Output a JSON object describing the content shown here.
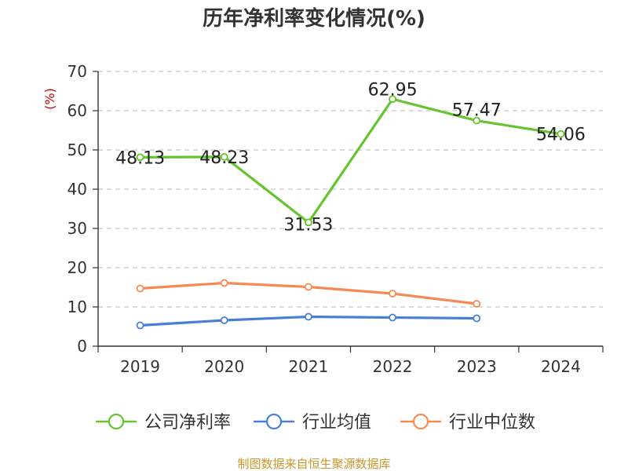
{
  "chart_data": {
    "type": "line",
    "title": "历年净利率变化情况(%)",
    "ylabel": "(%)",
    "xlabel": "",
    "categories": [
      "2019",
      "2020",
      "2021",
      "2022",
      "2023",
      "2024"
    ],
    "y_ticks": [
      0,
      10,
      20,
      30,
      40,
      50,
      60,
      70
    ],
    "ylim": [
      0,
      70
    ],
    "grid": true,
    "legend_position": "bottom",
    "series": [
      {
        "name": "公司净利率",
        "color": "#66c42e",
        "values": [
          48.13,
          48.23,
          31.53,
          62.95,
          57.47,
          54.06
        ],
        "labels": [
          "48.13",
          "48.23",
          "31.53",
          "62.95",
          "57.47",
          "54.06"
        ]
      },
      {
        "name": "行业均值",
        "color": "#4a7fd4",
        "values": [
          5.3,
          6.6,
          7.5,
          7.3,
          7.1,
          null
        ]
      },
      {
        "name": "行业中位数",
        "color": "#f58a55",
        "values": [
          14.7,
          16.1,
          15.1,
          13.4,
          10.8,
          null
        ]
      }
    ],
    "source": "制图数据来自恒生聚源数据库"
  }
}
